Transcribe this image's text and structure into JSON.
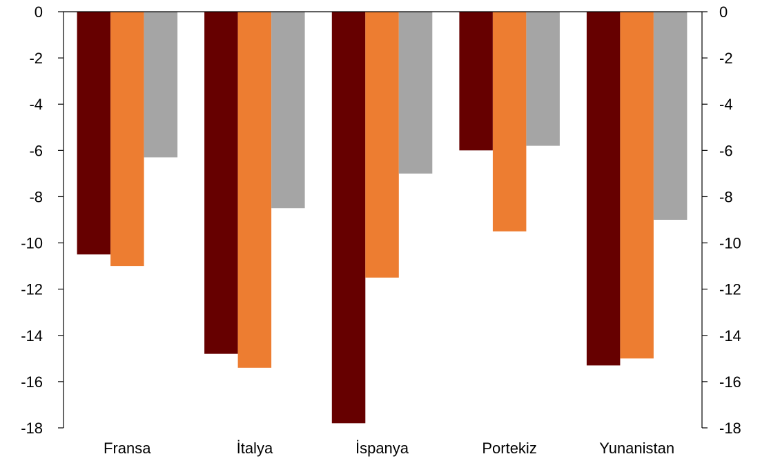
{
  "chart_data": {
    "type": "bar",
    "categories": [
      "Fransa",
      "İtalya",
      "İspanya",
      "Portekiz",
      "Yunanistan"
    ],
    "series": [
      {
        "values": [
          -10.5,
          -14.8,
          -17.8,
          -6.0,
          -15.3
        ],
        "color": "#660000"
      },
      {
        "values": [
          -11.0,
          -15.4,
          -11.5,
          -9.5,
          -15.0
        ],
        "color": "#ED7D31"
      },
      {
        "values": [
          -6.3,
          -8.5,
          -7.0,
          -5.8,
          -9.0
        ],
        "color": "#A5A5A5"
      }
    ],
    "ylim": [
      -18,
      0
    ],
    "yticks": [
      0,
      -2,
      -4,
      -6,
      -8,
      -10,
      -12,
      -14,
      -16,
      -18
    ],
    "y_axis_left": true,
    "y_axis_right": true,
    "grid": false,
    "legend": false
  }
}
